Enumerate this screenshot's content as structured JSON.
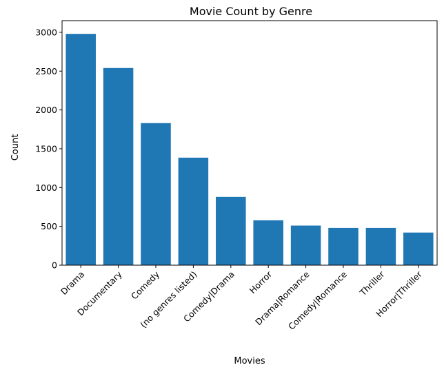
{
  "chart_data": {
    "type": "bar",
    "title": "Movie Count by Genre",
    "xlabel": "Movies",
    "ylabel": "Count",
    "categories": [
      "Drama",
      "Documentary",
      "Comedy",
      "(no genres listed)",
      "Comedy|Drama",
      "Horror",
      "Drama|Romance",
      "Comedy|Romance",
      "Thriller",
      "Horror|Thriller"
    ],
    "values": [
      2980,
      2540,
      1830,
      1385,
      880,
      578,
      510,
      480,
      480,
      420
    ],
    "ylim": [
      0,
      3150
    ],
    "yticks": [
      0,
      500,
      1000,
      1500,
      2000,
      2500,
      3000
    ],
    "bar_color": "#1f77b4",
    "grid": false
  }
}
